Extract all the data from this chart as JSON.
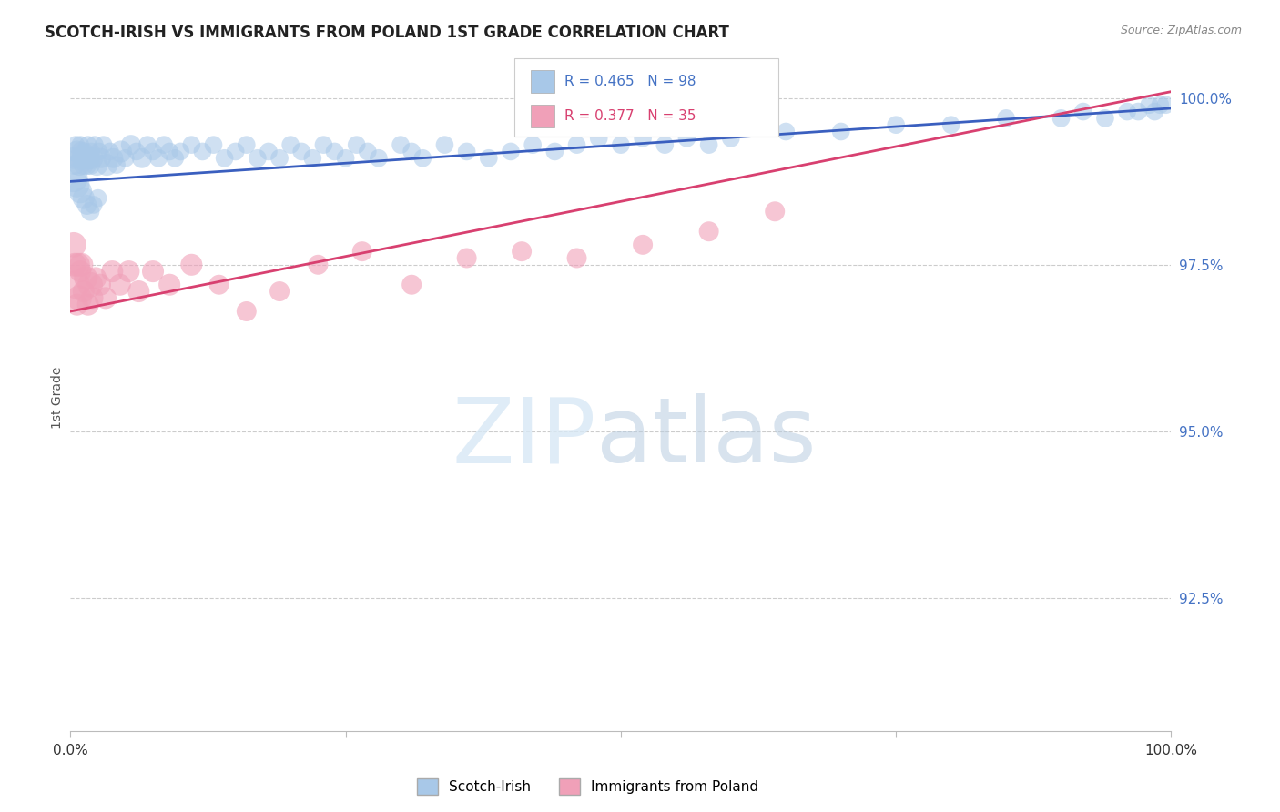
{
  "title": "SCOTCH-IRISH VS IMMIGRANTS FROM POLAND 1ST GRADE CORRELATION CHART",
  "source": "Source: ZipAtlas.com",
  "ylabel": "1st Grade",
  "yticks": [
    0.925,
    0.95,
    0.975,
    1.0
  ],
  "ytick_labels": [
    "92.5%",
    "95.0%",
    "97.5%",
    "100.0%"
  ],
  "xrange": [
    0.0,
    1.0
  ],
  "yrange": [
    0.905,
    1.005
  ],
  "legend_blue_label": "Scotch-Irish",
  "legend_pink_label": "Immigrants from Poland",
  "R_blue": 0.465,
  "N_blue": 98,
  "R_pink": 0.377,
  "N_pink": 35,
  "blue_color": "#a8c8e8",
  "pink_color": "#f0a0b8",
  "blue_line_color": "#3a5fbf",
  "pink_line_color": "#d84070",
  "blue_line_x": [
    0.0,
    1.0
  ],
  "blue_line_y": [
    0.9875,
    0.9985
  ],
  "pink_line_x": [
    0.0,
    1.0
  ],
  "pink_line_y": [
    0.968,
    1.001
  ],
  "blue_x": [
    0.003,
    0.004,
    0.005,
    0.006,
    0.007,
    0.008,
    0.009,
    0.01,
    0.011,
    0.012,
    0.013,
    0.014,
    0.015,
    0.016,
    0.017,
    0.018,
    0.019,
    0.02,
    0.022,
    0.024,
    0.026,
    0.028,
    0.03,
    0.033,
    0.036,
    0.039,
    0.042,
    0.046,
    0.05,
    0.055,
    0.06,
    0.065,
    0.07,
    0.075,
    0.08,
    0.085,
    0.09,
    0.095,
    0.1,
    0.11,
    0.12,
    0.13,
    0.14,
    0.15,
    0.16,
    0.17,
    0.18,
    0.19,
    0.2,
    0.21,
    0.22,
    0.23,
    0.24,
    0.25,
    0.26,
    0.27,
    0.28,
    0.3,
    0.31,
    0.32,
    0.34,
    0.36,
    0.38,
    0.4,
    0.42,
    0.44,
    0.46,
    0.48,
    0.5,
    0.52,
    0.54,
    0.56,
    0.58,
    0.6,
    0.65,
    0.7,
    0.75,
    0.8,
    0.85,
    0.9,
    0.92,
    0.94,
    0.96,
    0.97,
    0.98,
    0.985,
    0.99,
    0.995,
    0.003,
    0.006,
    0.009,
    0.012,
    0.015,
    0.018,
    0.021,
    0.025
  ],
  "blue_y": [
    0.991,
    0.99,
    0.993,
    0.992,
    0.991,
    0.99,
    0.993,
    0.992,
    0.991,
    0.99,
    0.992,
    0.991,
    0.99,
    0.993,
    0.991,
    0.99,
    0.992,
    0.991,
    0.993,
    0.99,
    0.992,
    0.991,
    0.993,
    0.99,
    0.992,
    0.991,
    0.99,
    0.992,
    0.991,
    0.993,
    0.992,
    0.991,
    0.993,
    0.992,
    0.991,
    0.993,
    0.992,
    0.991,
    0.992,
    0.993,
    0.992,
    0.993,
    0.991,
    0.992,
    0.993,
    0.991,
    0.992,
    0.991,
    0.993,
    0.992,
    0.991,
    0.993,
    0.992,
    0.991,
    0.993,
    0.992,
    0.991,
    0.993,
    0.992,
    0.991,
    0.993,
    0.992,
    0.991,
    0.992,
    0.993,
    0.992,
    0.993,
    0.994,
    0.993,
    0.994,
    0.993,
    0.994,
    0.993,
    0.994,
    0.995,
    0.995,
    0.996,
    0.996,
    0.997,
    0.997,
    0.998,
    0.997,
    0.998,
    0.998,
    0.999,
    0.998,
    0.999,
    0.999,
    0.988,
    0.987,
    0.986,
    0.985,
    0.984,
    0.983,
    0.984,
    0.985
  ],
  "blue_sizes": [
    300,
    250,
    200,
    300,
    250,
    300,
    200,
    250,
    300,
    250,
    200,
    300,
    250,
    200,
    300,
    250,
    200,
    300,
    200,
    300,
    200,
    250,
    200,
    300,
    200,
    250,
    200,
    300,
    200,
    250,
    200,
    250,
    200,
    200,
    200,
    200,
    200,
    200,
    200,
    200,
    200,
    200,
    200,
    200,
    200,
    200,
    200,
    200,
    200,
    200,
    200,
    200,
    200,
    200,
    200,
    200,
    200,
    200,
    200,
    200,
    200,
    200,
    200,
    200,
    200,
    200,
    200,
    200,
    200,
    200,
    200,
    200,
    200,
    200,
    200,
    200,
    200,
    200,
    200,
    200,
    200,
    200,
    200,
    200,
    200,
    200,
    200,
    200,
    500,
    400,
    350,
    300,
    250,
    220,
    200,
    200
  ],
  "pink_x": [
    0.003,
    0.004,
    0.005,
    0.006,
    0.007,
    0.008,
    0.009,
    0.01,
    0.012,
    0.014,
    0.016,
    0.018,
    0.02,
    0.023,
    0.027,
    0.032,
    0.038,
    0.045,
    0.053,
    0.062,
    0.075,
    0.09,
    0.11,
    0.135,
    0.16,
    0.19,
    0.225,
    0.265,
    0.31,
    0.36,
    0.41,
    0.46,
    0.52,
    0.58,
    0.64
  ],
  "pink_y": [
    0.978,
    0.975,
    0.972,
    0.969,
    0.975,
    0.97,
    0.974,
    0.975,
    0.971,
    0.973,
    0.969,
    0.972,
    0.97,
    0.973,
    0.972,
    0.97,
    0.974,
    0.972,
    0.974,
    0.971,
    0.974,
    0.972,
    0.975,
    0.972,
    0.968,
    0.971,
    0.975,
    0.977,
    0.972,
    0.976,
    0.977,
    0.976,
    0.978,
    0.98,
    0.983
  ],
  "pink_sizes": [
    400,
    350,
    500,
    300,
    350,
    400,
    300,
    350,
    300,
    350,
    300,
    400,
    300,
    300,
    300,
    300,
    300,
    300,
    300,
    300,
    300,
    300,
    300,
    250,
    250,
    250,
    250,
    250,
    250,
    250,
    250,
    250,
    250,
    250,
    250
  ]
}
